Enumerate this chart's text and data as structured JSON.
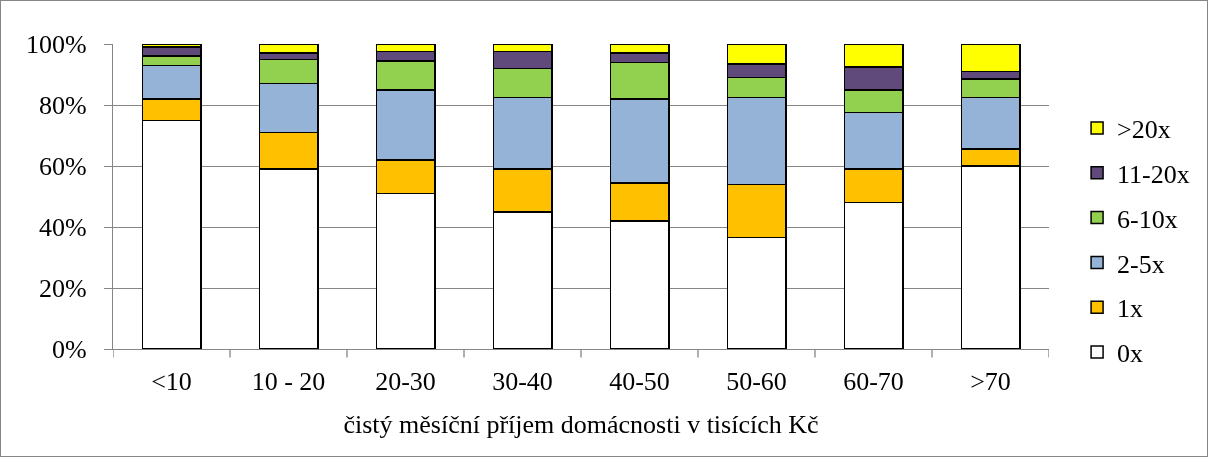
{
  "chart_data": {
    "type": "bar",
    "stacked": true,
    "categories": [
      "<10",
      "10 - 20",
      "20-30",
      "30-40",
      "40-50",
      "50-60",
      "60-70",
      ">70"
    ],
    "xlabel": "čistý měsíční příjem domácnosti v tisících Kč",
    "series": [
      {
        "name": "0x",
        "color": "#ffffff",
        "values": [
          75,
          59,
          51,
          45,
          42,
          36.5,
          48,
          60
        ]
      },
      {
        "name": "1x",
        "color": "#ffc000",
        "values": [
          7,
          12,
          11,
          14,
          12.5,
          17.5,
          11,
          5.5
        ]
      },
      {
        "name": "2-5x",
        "color": "#95b3d7",
        "values": [
          11,
          16,
          23,
          23.5,
          27.5,
          28.5,
          18.5,
          17
        ]
      },
      {
        "name": "6-10x",
        "color": "#92d050",
        "values": [
          3,
          8,
          9.5,
          9.5,
          12,
          6.5,
          7.5,
          6
        ]
      },
      {
        "name": "11-20x",
        "color": "#604a7b",
        "values": [
          3,
          2,
          3,
          5.5,
          3,
          4.5,
          7.5,
          2.5
        ]
      },
      {
        "name": ">20x",
        "color": "#ffff00",
        "values": [
          1,
          3,
          2.5,
          2.5,
          3,
          6.5,
          7.5,
          9
        ]
      }
    ],
    "ylim": [
      0,
      100
    ],
    "yticks": [
      {
        "value": 0,
        "label": "0%"
      },
      {
        "value": 20,
        "label": "20%"
      },
      {
        "value": 40,
        "label": "40%"
      },
      {
        "value": 60,
        "label": "60%"
      },
      {
        "value": 80,
        "label": "80%"
      },
      {
        "value": 100,
        "label": "100%"
      }
    ],
    "grid": "y",
    "legend": "right"
  }
}
